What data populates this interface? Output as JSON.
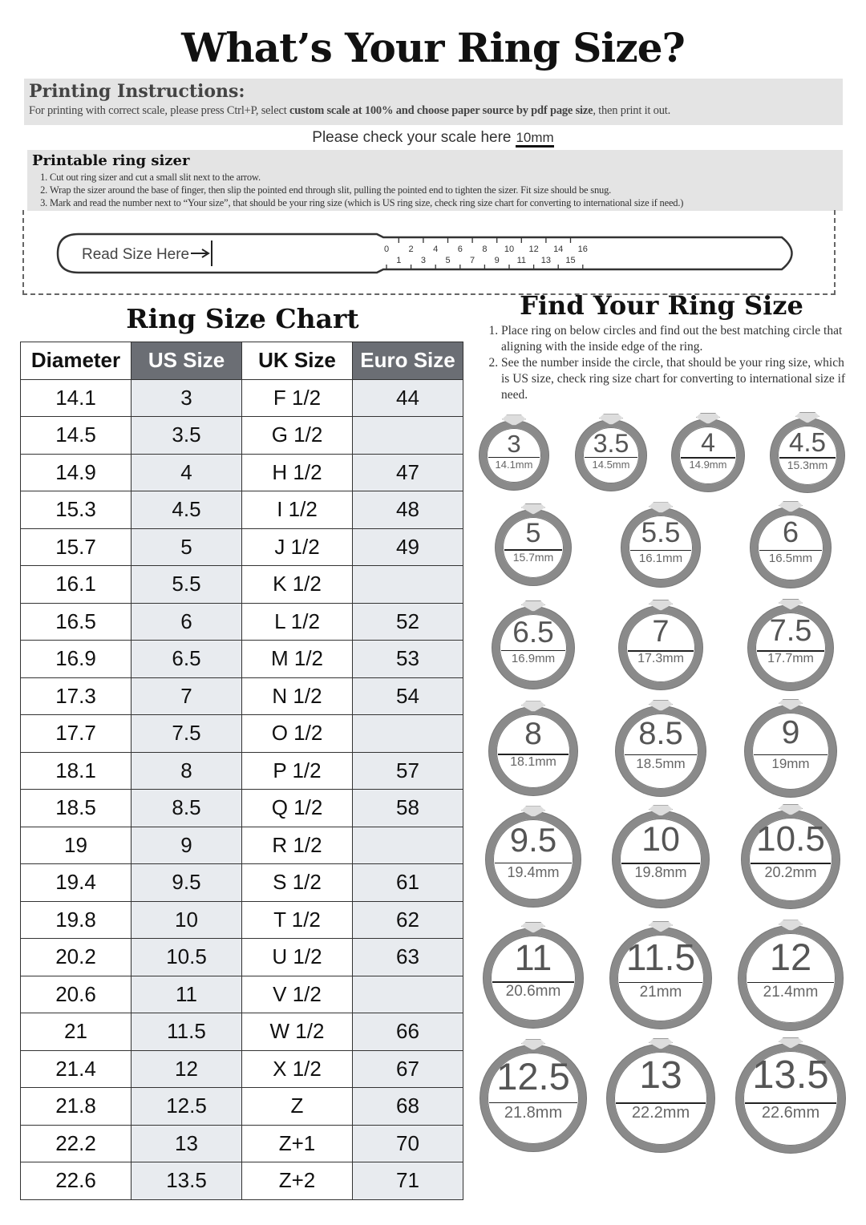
{
  "title": "What’s Your Ring Size?",
  "printing": {
    "heading": "Printing Instructions:",
    "text_pre": "For printing with correct scale, please press Ctrl+P, select ",
    "text_bold": "custom scale at 100% and choose paper source by pdf page size",
    "text_post": ", then print it out."
  },
  "scale": {
    "label": "Please check your scale here",
    "mm": "10mm"
  },
  "sizer": {
    "heading": "Printable ring sizer",
    "steps": [
      "Cut out ring sizer and cut a small slit next to the arrow.",
      "Wrap the sizer around the base of finger, then slip the pointed end through slit, pulling the pointed end to tighten the sizer. Fit size should be snug.",
      "Mark and read the number next to “Your size”, that should be your ring size (which is US ring size, check ring size chart for converting to international size if need.)"
    ],
    "read_label": "Read Size Here",
    "ticks": [
      "0",
      "1",
      "2",
      "3",
      "4",
      "5",
      "6",
      "7",
      "8",
      "9",
      "10",
      "11",
      "12",
      "13",
      "14",
      "15",
      "16"
    ]
  },
  "chart": {
    "title": "Ring Size Chart",
    "headers": [
      "Diameter",
      "US Size",
      "UK Size",
      "Euro Size"
    ],
    "rows": [
      [
        "14.1",
        "3",
        "F 1/2",
        "44"
      ],
      [
        "14.5",
        "3.5",
        "G 1/2",
        ""
      ],
      [
        "14.9",
        "4",
        "H 1/2",
        "47"
      ],
      [
        "15.3",
        "4.5",
        "I 1/2",
        "48"
      ],
      [
        "15.7",
        "5",
        "J 1/2",
        "49"
      ],
      [
        "16.1",
        "5.5",
        "K 1/2",
        ""
      ],
      [
        "16.5",
        "6",
        "L 1/2",
        "52"
      ],
      [
        "16.9",
        "6.5",
        "M 1/2",
        "53"
      ],
      [
        "17.3",
        "7",
        "N 1/2",
        "54"
      ],
      [
        "17.7",
        "7.5",
        "O 1/2",
        ""
      ],
      [
        "18.1",
        "8",
        "P 1/2",
        "57"
      ],
      [
        "18.5",
        "8.5",
        "Q 1/2",
        "58"
      ],
      [
        "19",
        "9",
        "R 1/2",
        ""
      ],
      [
        "19.4",
        "9.5",
        "S 1/2",
        "61"
      ],
      [
        "19.8",
        "10",
        "T 1/2",
        "62"
      ],
      [
        "20.2",
        "10.5",
        "U 1/2",
        "63"
      ],
      [
        "20.6",
        "11",
        "V 1/2",
        ""
      ],
      [
        "21",
        "11.5",
        "W 1/2",
        "66"
      ],
      [
        "21.4",
        "12",
        "X 1/2",
        "67"
      ],
      [
        "21.8",
        "12.5",
        "Z",
        "68"
      ],
      [
        "22.2",
        "13",
        "Z+1",
        "70"
      ],
      [
        "22.6",
        "13.5",
        "Z+2",
        "71"
      ]
    ]
  },
  "find": {
    "title": "Find Your Ring Size",
    "steps": [
      "Place ring on below circles and find out the best matching circle that aligning with the inside edge of the ring.",
      "See the number inside the circle, that should be your ring size, which is US size, check ring size chart for converting to international size if need."
    ],
    "rings": [
      {
        "size": "3",
        "mm": "14.1mm"
      },
      {
        "size": "3.5",
        "mm": "14.5mm"
      },
      {
        "size": "4",
        "mm": "14.9mm"
      },
      {
        "size": "4.5",
        "mm": "15.3mm"
      },
      {
        "size": "5",
        "mm": "15.7mm"
      },
      {
        "size": "5.5",
        "mm": "16.1mm"
      },
      {
        "size": "6",
        "mm": "16.5mm"
      },
      {
        "size": "6.5",
        "mm": "16.9mm"
      },
      {
        "size": "7",
        "mm": "17.3mm"
      },
      {
        "size": "7.5",
        "mm": "17.7mm"
      },
      {
        "size": "8",
        "mm": "18.1mm"
      },
      {
        "size": "8.5",
        "mm": "18.5mm"
      },
      {
        "size": "9",
        "mm": "19mm"
      },
      {
        "size": "9.5",
        "mm": "19.4mm"
      },
      {
        "size": "10",
        "mm": "19.8mm"
      },
      {
        "size": "10.5",
        "mm": "20.2mm"
      },
      {
        "size": "11",
        "mm": "20.6mm"
      },
      {
        "size": "11.5",
        "mm": "21mm"
      },
      {
        "size": "12",
        "mm": "21.4mm"
      },
      {
        "size": "12.5",
        "mm": "21.8mm"
      },
      {
        "size": "13",
        "mm": "22.2mm"
      },
      {
        "size": "13.5",
        "mm": "22.6mm"
      }
    ]
  },
  "colors": {
    "header_dark": "#6b6e74",
    "shade": "#e8ebef",
    "ring": "#8a8a8a",
    "panel": "#e4e4e4"
  }
}
